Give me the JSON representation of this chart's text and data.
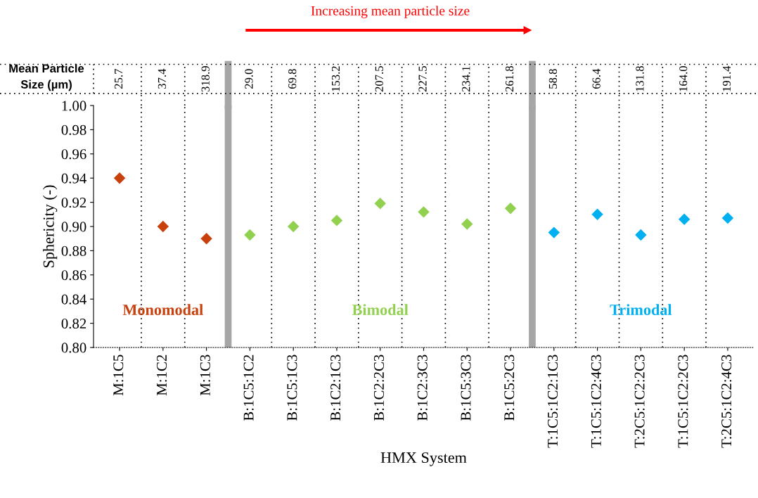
{
  "chart_data": {
    "type": "scatter",
    "xlabel": "HMX System",
    "ylabel": "Sphericity (-)",
    "categories": [
      "M:1C5",
      "M:1C2",
      "M:1C3",
      "B:1C5:1C2",
      "B:1C5:1C3",
      "B:1C2:1C3",
      "B:1C2:2C3",
      "B:1C2:3C3",
      "B:1C5:3C3",
      "B:1C5:2C3",
      "T:1C5:1C2:1C3",
      "T:1C5:1C2:4C3",
      "T:2C5:1C2:2C3",
      "T:1C5:1C2:2C3",
      "T:2C5:1C2:4C3"
    ],
    "values": [
      0.94,
      0.9,
      0.89,
      0.893,
      0.9,
      0.905,
      0.919,
      0.912,
      0.902,
      0.915,
      0.895,
      0.91,
      0.893,
      0.906,
      0.907
    ],
    "colors": [
      "#c8400c",
      "#c8400c",
      "#c8400c",
      "#92d050",
      "#92d050",
      "#92d050",
      "#92d050",
      "#92d050",
      "#92d050",
      "#92d050",
      "#00b0f0",
      "#00b0f0",
      "#00b0f0",
      "#00b0f0",
      "#00b0f0"
    ],
    "marker": "diamond",
    "ylim": [
      0.8,
      1.0
    ],
    "yticks": [
      {
        "value": 0.8,
        "label": "0.80"
      },
      {
        "value": 0.82,
        "label": "0.82"
      },
      {
        "value": 0.84,
        "label": "0.84"
      },
      {
        "value": 0.86,
        "label": "0.86"
      },
      {
        "value": 0.88,
        "label": "0.88"
      },
      {
        "value": 0.9,
        "label": "0.90"
      },
      {
        "value": 0.92,
        "label": "0.92"
      },
      {
        "value": 0.94,
        "label": "0.94"
      },
      {
        "value": 0.96,
        "label": "0.96"
      },
      {
        "value": 0.98,
        "label": "0.98"
      },
      {
        "value": 1.0,
        "label": "1.00"
      }
    ],
    "grid": "x",
    "annotations": [
      "Increasing mean particle size",
      "Mean Particle Size (µm)",
      "25.7",
      "37.4",
      "318.9",
      "29.0",
      "69.8",
      "153.2",
      "207.5",
      "227.5",
      "234.1",
      "261.8",
      "58.8",
      "66.4",
      "131.8",
      "164.0",
      "191.4",
      "Monomodal",
      "Bimodal",
      "Trimodal"
    ]
  }
}
